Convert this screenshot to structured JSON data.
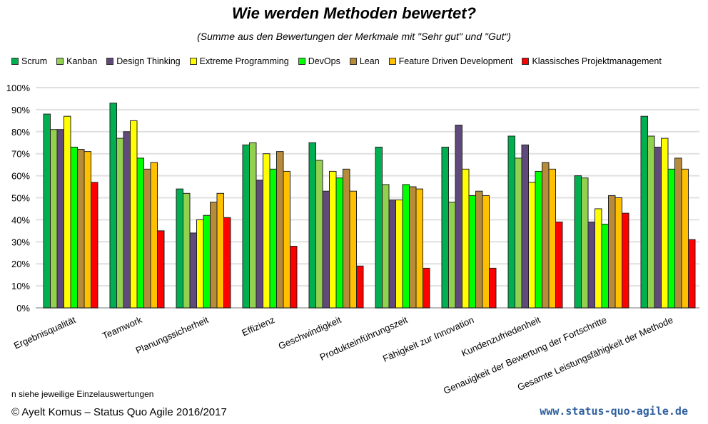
{
  "chart_data": {
    "type": "bar",
    "title": "Wie werden Methoden bewertet?",
    "subtitle": "(Summe aus den Bewertungen der Merkmale mit \"Sehr gut\" und \"Gut“)",
    "ylim": [
      0,
      100
    ],
    "yticks": [
      "0%",
      "10%",
      "20%",
      "30%",
      "40%",
      "50%",
      "60%",
      "70%",
      "80%",
      "90%",
      "100%"
    ],
    "grid": true,
    "legend_placement": "top",
    "categories": [
      "Ergebnisqualität",
      "Teamwork",
      "Planungssicherheit",
      "Effizienz",
      "Geschwindigkeit",
      "Produkteinführungszeit",
      "Fähigkeit zur Innovation",
      "Kundenzufriedenheit",
      "Genauigkeit der Bewertung der Fortschritte",
      "Gesamte Leistungsfähigkeit der Methode"
    ],
    "series": [
      {
        "name": "Scrum",
        "color": "#00B050",
        "values": [
          88,
          93,
          54,
          74,
          75,
          73,
          73,
          78,
          60,
          87
        ]
      },
      {
        "name": "Kanban",
        "color": "#92D050",
        "values": [
          81,
          77,
          52,
          75,
          67,
          56,
          48,
          68,
          59,
          78
        ]
      },
      {
        "name": "Design Thinking",
        "color": "#604A7B",
        "values": [
          81,
          80,
          34,
          58,
          53,
          49,
          83,
          74,
          39,
          73
        ]
      },
      {
        "name": "Extreme Programming",
        "color": "#FFFF00",
        "values": [
          87,
          85,
          40,
          70,
          62,
          49,
          63,
          57,
          45,
          77
        ]
      },
      {
        "name": "DevOps",
        "color": "#00FF00",
        "values": [
          73,
          68,
          42,
          63,
          59,
          56,
          51,
          62,
          38,
          63
        ]
      },
      {
        "name": "Lean",
        "color": "#B68B3A",
        "values": [
          72,
          63,
          48,
          71,
          63,
          55,
          53,
          66,
          51,
          68
        ]
      },
      {
        "name": "Feature Driven Development",
        "color": "#FFC000",
        "values": [
          71,
          66,
          52,
          62,
          53,
          54,
          51,
          63,
          50,
          63
        ]
      },
      {
        "name": "Klassisches Projektmanagement",
        "color": "#FF0000",
        "values": [
          57,
          35,
          41,
          28,
          19,
          18,
          18,
          39,
          43,
          31
        ]
      }
    ]
  },
  "footer": {
    "note": "n siehe jeweilige Einzelauswertungen",
    "copyright": "© Ayelt Komus – Status Quo Agile 2016/2017",
    "url": "www.status-quo-agile.de"
  }
}
